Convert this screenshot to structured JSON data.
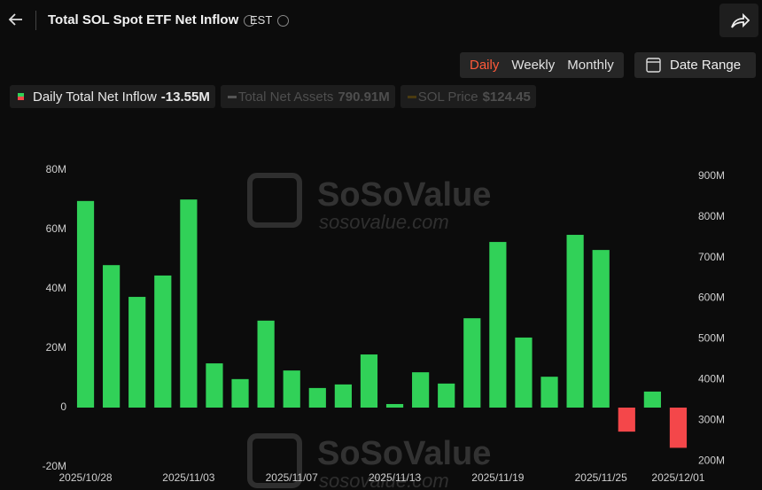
{
  "header": {
    "title": "Total SOL Spot ETF Net Inflow",
    "timezone": "EST",
    "tabs": [
      "Daily",
      "Weekly",
      "Monthly"
    ],
    "date_range": "Date Range"
  },
  "legend": [
    {
      "value": "-13.55M"
    },
    {
      "label": "Total Net Assets",
      "value": "790.91M"
    },
    {
      "label": "SOL Price",
      "value": "$124.45"
    }
  ],
  "watermark": {
    "brand": "SoSoValue",
    "site": "sosovalue.com"
  },
  "chart_data": {
    "type": "bar",
    "categories": [
      "2025/10/28",
      null,
      null,
      null,
      "2025/11/03",
      null,
      null,
      null,
      "2025/11/07",
      null,
      null,
      null,
      "2025/11/13",
      null,
      null,
      null,
      "2025/11/19",
      null,
      null,
      null,
      "2025/11/25",
      null,
      null,
      "2025/12/01"
    ],
    "series": [
      {
        "name": "Daily Total Net Inflow",
        "color": "#31d158",
        "negative_color": "#f4474a",
        "values": [
          69.6,
          48,
          37.3,
          44.5,
          70.1,
          14.9,
          9.6,
          29.3,
          12.5,
          6.6,
          7.8,
          17.9,
          1.2,
          11.9,
          8.1,
          30.1,
          55.8,
          23.6,
          10.4,
          58.2,
          53.1,
          -8.1,
          5.4,
          -13.55
        ]
      }
    ],
    "ylim": [
      -20,
      80
    ],
    "yticks": [
      {
        "value": -20,
        "label": "-20M"
      },
      0,
      {
        "value": 20,
        "label": "20M"
      },
      {
        "value": 40,
        "label": "40M"
      },
      {
        "value": 60,
        "label": "60M"
      },
      {
        "value": 80,
        "label": "80M"
      }
    ],
    "y2lim": [
      185,
      915
    ],
    "y2ticks": [
      {
        "value": 200,
        "label": "200M"
      },
      {
        "value": 300,
        "label": "300M"
      },
      {
        "value": 400,
        "label": "400M"
      },
      {
        "value": 500,
        "label": "500M"
      },
      {
        "value": 600,
        "label": "600M"
      },
      {
        "value": 700,
        "label": "700M"
      },
      {
        "value": 800,
        "label": "800M"
      },
      {
        "value": 900,
        "label": "900M"
      }
    ],
    "grid": false
  }
}
